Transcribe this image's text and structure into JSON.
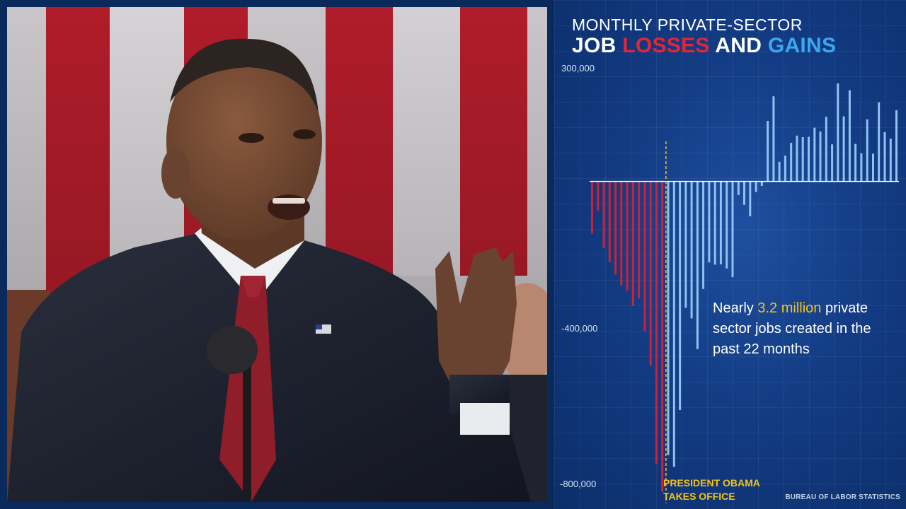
{
  "title": {
    "line1": "MONTHLY PRIVATE-SECTOR",
    "line2_job": "JOB",
    "line2_losses": "LOSSES",
    "line2_and": "AND",
    "line2_gains": "GAINS"
  },
  "callout": {
    "prefix": "Nearly ",
    "highlight": "3.2 million",
    "suffix": " private sector jobs created in the past 22 months"
  },
  "event_label": {
    "line1": "PRESIDENT OBAMA",
    "line2": "TAKES OFFICE"
  },
  "source": "BUREAU OF LABOR STATISTICS",
  "colors": {
    "losses": "#d21f35",
    "gains": "#8fc2f2",
    "event_line": "#f4c21a",
    "highlight": "#f4c21a"
  },
  "chart_data": {
    "type": "bar",
    "title": "MONTHLY PRIVATE-SECTOR JOB LOSSES AND GAINS",
    "xlabel": "",
    "ylabel": "",
    "ylim": [
      -800000,
      300000
    ],
    "yticks": [
      {
        "value": 300000,
        "label": "300,000"
      },
      {
        "value": -400000,
        "label": "-400,000"
      },
      {
        "value": -800000,
        "label": "-800,000"
      }
    ],
    "grid": true,
    "series": [
      {
        "values": [
          -138000,
          -77000,
          -176000,
          -213000,
          -246000,
          -275000,
          -289000,
          -329000,
          -309000,
          -396000,
          -487000,
          -747000,
          -820000
        ]
      },
      {
        "values": [
          -723000,
          -754000,
          -604000,
          -334000,
          -362000,
          -443000,
          -284000,
          -214000,
          -220000,
          -219000,
          -230000,
          -253000,
          -36000,
          -62000,
          -92000,
          -28000,
          -12000,
          160000,
          225000,
          52000,
          68000,
          102000,
          121000,
          117000,
          118000,
          142000,
          132000,
          171000,
          98000,
          259000,
          172000,
          241000,
          99000,
          74000,
          164000,
          73000,
          209000,
          130000,
          113000,
          188000
        ]
      }
    ],
    "event_index": 13,
    "event_label": "PRESIDENT OBAMA TAKES OFFICE"
  }
}
